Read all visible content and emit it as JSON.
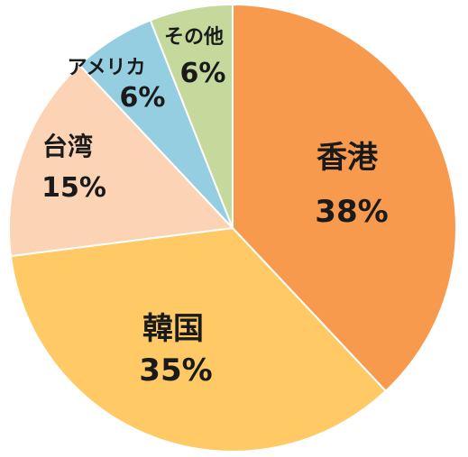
{
  "chart_data": {
    "type": "pie",
    "title": "",
    "start_angle_deg": 0,
    "direction": "clockwise",
    "slices": [
      {
        "name": "香港",
        "value": 38,
        "label": "38%",
        "color": "#F79A4E"
      },
      {
        "name": "韓国",
        "value": 35,
        "label": "35%",
        "color": "#FFCA66"
      },
      {
        "name": "台湾",
        "value": 15,
        "label": "15%",
        "color": "#FCD4B5"
      },
      {
        "name": "アメリカ",
        "value": 6,
        "label": "6%",
        "color": "#95CEE0"
      },
      {
        "name": "その他",
        "value": 6,
        "label": "6%",
        "color": "#C5D99C"
      }
    ]
  }
}
